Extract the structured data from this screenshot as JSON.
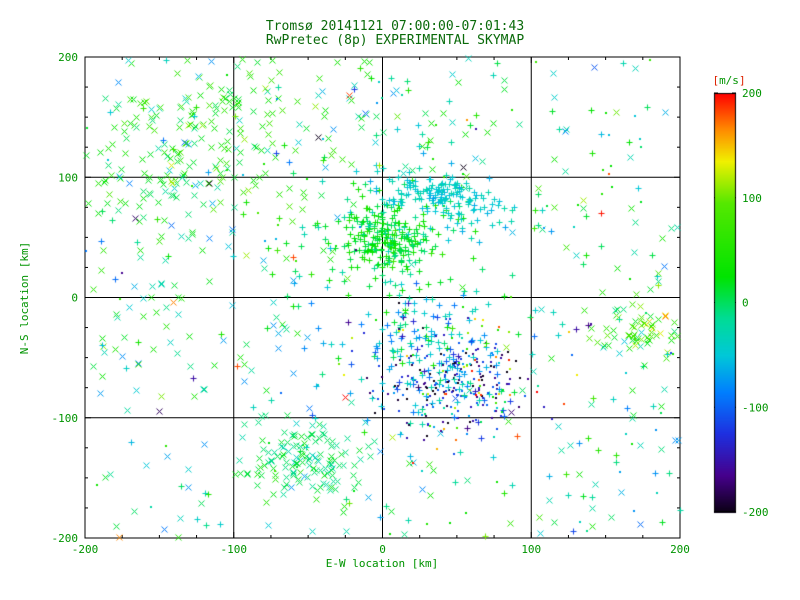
{
  "colors": {
    "background": "#ffffff",
    "title_text": "#0a6a0a",
    "tick_text": "#009400",
    "axis": "#000000",
    "bracket": "#dd2200"
  },
  "chart_data": {
    "type": "scatter",
    "title": "Tromsø 20141121 07:00:00-07:01:43",
    "subtitle": "RwPretec (8p) EXPERIMENTAL SKYMAP",
    "xlabel": "E-W location [km]",
    "ylabel": "N-S location [km]",
    "xlim": [
      -200,
      200
    ],
    "ylim": [
      -200,
      200
    ],
    "xticks": [
      -200,
      -100,
      0,
      100,
      200
    ],
    "yticks": [
      -200,
      -100,
      0,
      100,
      200
    ],
    "grid": true,
    "colorbar": {
      "bracket_open": "[",
      "label": "m/s",
      "bracket_close": "]",
      "min": -200,
      "max": 200,
      "ticks": [
        200,
        100,
        0,
        -100,
        -200
      ]
    },
    "colormap": [
      {
        "v": -200,
        "c": "#0b0014"
      },
      {
        "v": -165,
        "c": "#46008c"
      },
      {
        "v": -125,
        "c": "#1e30e0"
      },
      {
        "v": -85,
        "c": "#0080ff"
      },
      {
        "v": -50,
        "c": "#00c8d8"
      },
      {
        "v": -15,
        "c": "#00dc96"
      },
      {
        "v": 25,
        "c": "#00e400"
      },
      {
        "v": 95,
        "c": "#55e800"
      },
      {
        "v": 135,
        "c": "#f0f000"
      },
      {
        "v": 165,
        "c": "#ff8c00"
      },
      {
        "v": 200,
        "c": "#ff0000"
      }
    ],
    "points": {
      "seed": 1337,
      "marker_kinds": [
        "x",
        "plus",
        "dot"
      ],
      "clusters": [
        {
          "name": "topleft-a",
          "shape": "gauss",
          "cx": -130,
          "cy": 150,
          "sx": 40,
          "sy": 28,
          "n": 85,
          "marker": "x",
          "v": {
            "mean": 35,
            "sd": 30
          }
        },
        {
          "name": "topleft-b",
          "shape": "gauss",
          "cx": -152,
          "cy": 92,
          "sx": 32,
          "sy": 22,
          "n": 65,
          "marker": "x",
          "v": {
            "mean": 25,
            "sd": 25
          }
        },
        {
          "name": "topleft-c",
          "shape": "gauss",
          "cx": -75,
          "cy": 135,
          "sx": 45,
          "sy": 35,
          "n": 70,
          "marker": "x",
          "v": {
            "mean": 45,
            "sd": 35
          }
        },
        {
          "name": "top-field",
          "shape": "uniform",
          "x0": -200,
          "x1": 60,
          "y0": 30,
          "y1": 200,
          "n": 90,
          "marker": "mix",
          "v": {
            "min": -90,
            "max": 90
          }
        },
        {
          "name": "top-mid",
          "shape": "uniform",
          "x0": -30,
          "x1": 120,
          "y0": 100,
          "y1": 200,
          "n": 45,
          "marker": "mix",
          "v": {
            "min": -60,
            "max": 80
          }
        },
        {
          "name": "center-dense",
          "shape": "gauss",
          "cx": 2,
          "cy": 48,
          "sx": 14,
          "sy": 14,
          "n": 190,
          "marker": "plus",
          "v": {
            "mean": 15,
            "sd": 20
          }
        },
        {
          "name": "center-halo",
          "shape": "gauss",
          "cx": 0,
          "cy": 45,
          "sx": 38,
          "sy": 30,
          "n": 110,
          "marker": "plus",
          "v": {
            "mean": 5,
            "sd": 35
          }
        },
        {
          "name": "cyan-streak",
          "shape": "gauss",
          "cx": 32,
          "cy": 88,
          "sx": 22,
          "sy": 7,
          "n": 120,
          "marker": "plus",
          "v": {
            "mean": -45,
            "sd": 12
          }
        },
        {
          "name": "cyan-ext",
          "shape": "gauss",
          "cx": 70,
          "cy": 70,
          "sx": 18,
          "sy": 12,
          "n": 40,
          "marker": "plus",
          "v": {
            "mean": -40,
            "sd": 15
          }
        },
        {
          "name": "dark-swarm",
          "shape": "gauss",
          "cx": 45,
          "cy": -70,
          "sx": 26,
          "sy": 22,
          "n": 230,
          "marker": "dot",
          "v": {
            "mean": -140,
            "sd": 50
          }
        },
        {
          "name": "dark-swarm-mix",
          "shape": "gauss",
          "cx": 40,
          "cy": -60,
          "sx": 32,
          "sy": 28,
          "n": 90,
          "marker": "plus",
          "v": {
            "mean": -60,
            "sd": 40
          }
        },
        {
          "name": "warm-sprinkle",
          "shape": "gauss",
          "cx": 50,
          "cy": -65,
          "sx": 35,
          "sy": 30,
          "n": 55,
          "marker": "dot",
          "v": {
            "mean": 120,
            "sd": 60
          }
        },
        {
          "name": "mid-band",
          "shape": "gauss",
          "cx": 15,
          "cy": -35,
          "sx": 30,
          "sy": 22,
          "n": 90,
          "marker": "plus",
          "v": {
            "mean": -50,
            "sd": 45
          }
        },
        {
          "name": "bottomleft-green",
          "shape": "gauss",
          "cx": -50,
          "cy": -135,
          "sx": 20,
          "sy": 16,
          "n": 130,
          "marker": "x",
          "v": {
            "mean": 0,
            "sd": 18
          }
        },
        {
          "name": "left-sparse",
          "shape": "uniform",
          "x0": -200,
          "x1": -60,
          "y0": -80,
          "y1": 40,
          "n": 55,
          "marker": "x",
          "v": {
            "min": -80,
            "max": 60
          }
        },
        {
          "name": "right-knot",
          "shape": "gauss",
          "cx": 170,
          "cy": -25,
          "sx": 16,
          "sy": 13,
          "n": 65,
          "marker": "x",
          "v": {
            "mean": 70,
            "sd": 45
          }
        },
        {
          "name": "right-sparse",
          "shape": "uniform",
          "x0": 100,
          "x1": 200,
          "y0": -140,
          "y1": 160,
          "n": 70,
          "marker": "mix",
          "v": {
            "min": -70,
            "max": 80
          }
        },
        {
          "name": "bottom-sparse",
          "shape": "uniform",
          "x0": -200,
          "x1": 200,
          "y0": -200,
          "y1": -110,
          "n": 90,
          "marker": "mix",
          "v": {
            "min": -80,
            "max": 60
          }
        },
        {
          "name": "field-sparse",
          "shape": "uniform",
          "x0": -200,
          "x1": 200,
          "y0": -200,
          "y1": 200,
          "n": 140,
          "marker": "mix",
          "v": {
            "min": -120,
            "max": 120
          }
        },
        {
          "name": "hot-outliers",
          "shape": "uniform",
          "x0": -200,
          "x1": 200,
          "y0": -200,
          "y1": 200,
          "n": 12,
          "marker": "mix",
          "v": {
            "min": 150,
            "max": 200
          }
        },
        {
          "name": "cold-outliers",
          "shape": "uniform",
          "x0": -200,
          "x1": 200,
          "y0": -150,
          "y1": 150,
          "n": 15,
          "marker": "mix",
          "v": {
            "min": -200,
            "max": -150
          }
        }
      ]
    }
  }
}
